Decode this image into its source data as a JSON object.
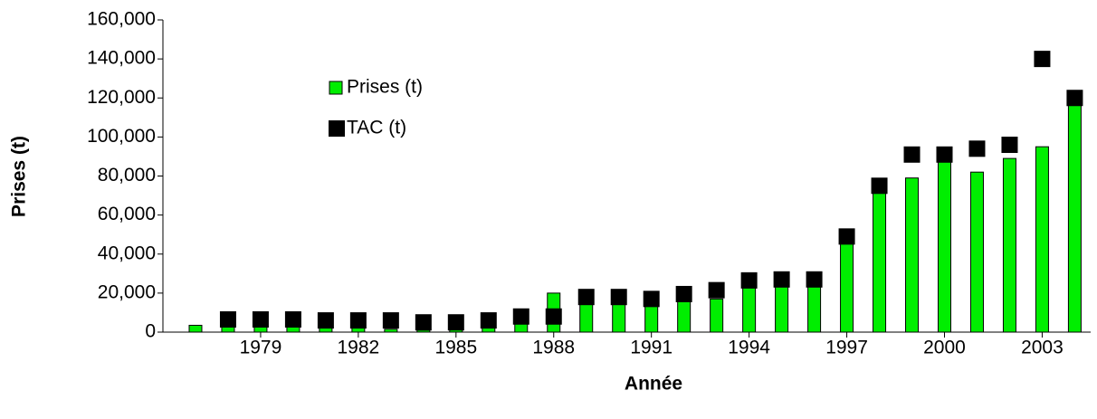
{
  "chart_data": {
    "type": "bar",
    "x_label": "Année",
    "y_label": "Prises (t)",
    "x": [
      1977,
      1978,
      1979,
      1980,
      1981,
      1982,
      1983,
      1984,
      1985,
      1986,
      1987,
      1988,
      1989,
      1990,
      1991,
      1992,
      1993,
      1994,
      1995,
      1996,
      1997,
      1998,
      1999,
      2000,
      2001,
      2002,
      2003,
      2004
    ],
    "series": [
      {
        "name": "Prises (t)",
        "type": "bar",
        "color": "#00ee00",
        "values": [
          3500,
          3000,
          3000,
          3000,
          3000,
          2500,
          1500,
          1000,
          1500,
          3000,
          6000,
          20000,
          15000,
          15000,
          14000,
          16000,
          17000,
          23000,
          24000,
          24000,
          46000,
          72000,
          79000,
          88000,
          82000,
          89000,
          95000,
          117000
        ]
      },
      {
        "name": "TAC (t)",
        "type": "scatter",
        "color": "#000000",
        "values": [
          null,
          6500,
          6500,
          6500,
          6000,
          6000,
          6000,
          5000,
          5000,
          6000,
          8000,
          8000,
          18000,
          18000,
          17000,
          19500,
          21500,
          26500,
          27000,
          27000,
          49000,
          75000,
          91000,
          91000,
          94000,
          96000,
          140000,
          120000
        ]
      }
    ],
    "xlim": [
      1976,
      2004.6
    ],
    "xticks": [
      1979,
      1982,
      1985,
      1988,
      1991,
      1994,
      1997,
      2000,
      2003
    ],
    "ylim": [
      0,
      160000
    ],
    "yticks": [
      0,
      {
        "value": 20000,
        "label": "20,000"
      },
      {
        "value": 40000,
        "label": "40,000"
      },
      {
        "value": 60000,
        "label": "60,000"
      },
      {
        "value": 80000,
        "label": "80,000"
      },
      {
        "value": 100000,
        "label": "100,000"
      },
      {
        "value": 120000,
        "label": "120,000"
      },
      {
        "value": 140000,
        "label": "140,000"
      },
      {
        "value": 160000,
        "label": "160,000"
      }
    ],
    "legend": "upper left",
    "grid": false
  }
}
